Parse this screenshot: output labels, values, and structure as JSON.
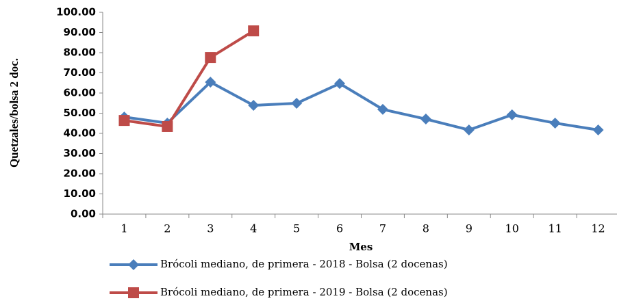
{
  "chart_data": {
    "type": "line",
    "y_label": "Quetzales/bolsa 2 doc.",
    "x_label": "Mes",
    "categories": [
      "1",
      "2",
      "3",
      "4",
      "5",
      "6",
      "7",
      "8",
      "9",
      "10",
      "11",
      "12"
    ],
    "series": [
      {
        "name": "Brócoli mediano, de primera - 2018 - Bolsa (2 docenas)",
        "color": "#4a7ebb",
        "marker": "diamond",
        "values": [
          48.1,
          45.1,
          65.4,
          53.9,
          54.9,
          64.7,
          51.9,
          47.1,
          41.7,
          49.2,
          45.1,
          41.7
        ]
      },
      {
        "name": "Brócoli mediano, de primera - 2019 - Bolsa (2 docenas)",
        "color": "#be4b48",
        "marker": "square",
        "values": [
          46.4,
          43.4,
          77.6,
          90.8,
          null,
          null,
          null,
          null,
          null,
          null,
          null,
          null
        ]
      }
    ],
    "ylim": [
      0,
      100
    ],
    "yticks": [
      {
        "value": 0,
        "label": "0.00"
      },
      {
        "value": 10,
        "label": "10.00"
      },
      {
        "value": 20,
        "label": "20.00"
      },
      {
        "value": 30,
        "label": "30.00"
      },
      {
        "value": 40,
        "label": "40.00"
      },
      {
        "value": 50,
        "label": "50.00"
      },
      {
        "value": 60,
        "label": "60.00"
      },
      {
        "value": 70,
        "label": "70.00"
      },
      {
        "value": 80,
        "label": "80.00"
      },
      {
        "value": 90,
        "label": "90.00"
      },
      {
        "value": 100,
        "label": "100.00"
      }
    ],
    "grid": false
  }
}
